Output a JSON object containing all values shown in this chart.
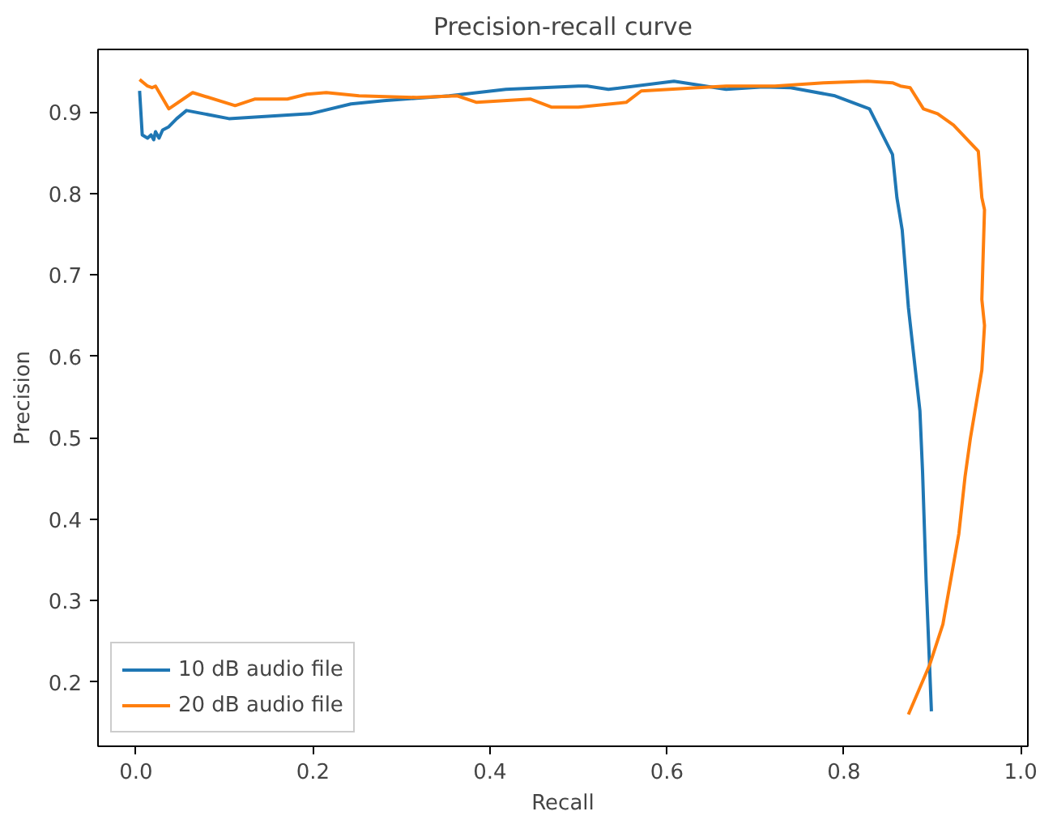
{
  "chart_data": {
    "type": "line",
    "title": "Precision-recall curve",
    "xlabel": "Recall",
    "ylabel": "Precision",
    "xlim": [
      -0.043,
      1.008
    ],
    "ylim": [
      0.121,
      0.977
    ],
    "xticks": [
      {
        "value": 0,
        "label": "0.0"
      },
      0.2,
      0.4,
      0.6,
      0.8,
      {
        "value": 1,
        "label": "1.0"
      }
    ],
    "yticks": [
      0.2,
      0.3,
      0.4,
      0.5,
      0.6,
      0.7,
      0.8,
      0.9
    ],
    "grid": false,
    "legend": "bottom left",
    "marker": "none",
    "line_style": "solid",
    "series": [
      {
        "name": "10 dB audio file",
        "color": "#1f77b4",
        "x": [
          0.004,
          0.007,
          0.013,
          0.017,
          0.02,
          0.022,
          0.026,
          0.03,
          0.037,
          0.046,
          0.057,
          0.105,
          0.197,
          0.243,
          0.28,
          0.354,
          0.418,
          0.5,
          0.51,
          0.534,
          0.608,
          0.667,
          0.709,
          0.74,
          0.79,
          0.829,
          0.855,
          0.86,
          0.866,
          0.873,
          0.886,
          0.889,
          0.893,
          0.899
        ],
        "values": [
          0.926,
          0.872,
          0.868,
          0.872,
          0.866,
          0.876,
          0.868,
          0.878,
          0.882,
          0.892,
          0.902,
          0.892,
          0.898,
          0.91,
          0.914,
          0.92,
          0.928,
          0.932,
          0.932,
          0.928,
          0.938,
          0.928,
          0.931,
          0.93,
          0.92,
          0.904,
          0.848,
          0.795,
          0.755,
          0.66,
          0.533,
          0.458,
          0.325,
          0.164
        ]
      },
      {
        "name": "20 dB audio file",
        "color": "#ff7f0e",
        "x": [
          0.004,
          0.013,
          0.018,
          0.022,
          0.037,
          0.064,
          0.112,
          0.134,
          0.171,
          0.193,
          0.215,
          0.252,
          0.317,
          0.363,
          0.385,
          0.446,
          0.47,
          0.5,
          0.554,
          0.571,
          0.667,
          0.722,
          0.777,
          0.827,
          0.855,
          0.864,
          0.875,
          0.89,
          0.906,
          0.924,
          0.952,
          0.956,
          0.959,
          0.956,
          0.959,
          0.956,
          0.943,
          0.937,
          0.93,
          0.912,
          0.897,
          0.873
        ],
        "values": [
          0.94,
          0.932,
          0.93,
          0.932,
          0.904,
          0.924,
          0.908,
          0.916,
          0.916,
          0.922,
          0.924,
          0.92,
          0.918,
          0.92,
          0.912,
          0.916,
          0.906,
          0.906,
          0.912,
          0.926,
          0.932,
          0.932,
          0.936,
          0.938,
          0.936,
          0.932,
          0.93,
          0.904,
          0.898,
          0.884,
          0.852,
          0.795,
          0.78,
          0.67,
          0.638,
          0.583,
          0.499,
          0.452,
          0.382,
          0.271,
          0.221,
          0.16
        ]
      }
    ]
  }
}
